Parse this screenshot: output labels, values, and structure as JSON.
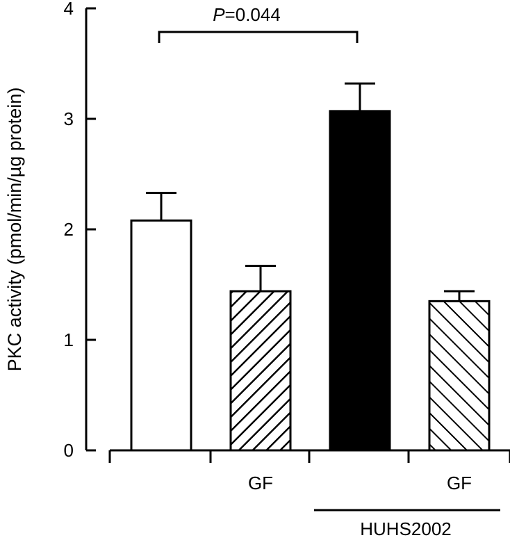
{
  "chart_data": {
    "type": "bar",
    "ylabel": "PKC activity (pmol/min/µg protein)",
    "ylim": [
      0,
      4
    ],
    "yticks": [
      "0",
      "1",
      "2",
      "3",
      "4"
    ],
    "categories": [
      "",
      "GF",
      "",
      "GF"
    ],
    "values": [
      2.08,
      1.44,
      3.07,
      1.35
    ],
    "errors": [
      0.25,
      0.23,
      0.25,
      0.09
    ],
    "fills": [
      "white",
      "hatch-up",
      "black",
      "hatch-down"
    ],
    "group_label": "HUHS2002",
    "annotation": {
      "p_italic": "P",
      "p_value": "=0.044"
    }
  }
}
